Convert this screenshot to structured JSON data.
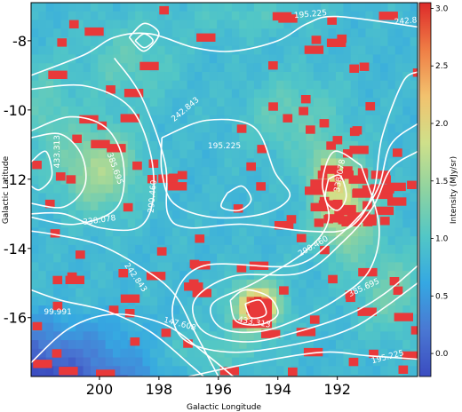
{
  "chart_data": {
    "type": "heatmap",
    "xlabel": "Galactic Longitude",
    "ylabel": "Galactic Latitude",
    "colorbar_label": "Intensity (MJy/sr)",
    "xlim": [
      202.3,
      189.3
    ],
    "ylim": [
      -17.7,
      -6.9
    ],
    "x_ticks": [
      200,
      198,
      196,
      194,
      192
    ],
    "y_ticks": [
      -8,
      -10,
      -12,
      -14,
      -16
    ],
    "colorbar_range": [
      -0.2,
      3.05
    ],
    "colorbar_ticks": [
      "0.0",
      "0.5",
      "1.0",
      "1.5",
      "2.0",
      "2.5",
      "3.0"
    ],
    "colormap": [
      "#3b4cc0",
      "#4a78d3",
      "#35a8e2",
      "#52c7c6",
      "#8fd3a0",
      "#cfe08a",
      "#f2c26e",
      "#ef7d45",
      "#dd2a2a"
    ],
    "masked_pixel_color": "#e8393a",
    "contours": {
      "color": "#ffffff",
      "levels": [
        99.991,
        147.608,
        195.225,
        242.843,
        290.46,
        338.078,
        385.695,
        433.313
      ],
      "labels": [
        {
          "text": "195.225",
          "x": 192.9,
          "y": -7.25,
          "angle": -5
        },
        {
          "text": "242.8",
          "x": 189.7,
          "y": -7.45,
          "angle": -5
        },
        {
          "text": "242.843",
          "x": 197.1,
          "y": -10.0,
          "angle": -40
        },
        {
          "text": "195.225",
          "x": 195.8,
          "y": -11.05,
          "angle": 0
        },
        {
          "text": "433.313",
          "x": 201.4,
          "y": -11.2,
          "angle": -90
        },
        {
          "text": "385.695",
          "x": 199.5,
          "y": -11.7,
          "angle": 70
        },
        {
          "text": "290.460",
          "x": 198.2,
          "y": -12.5,
          "angle": -85
        },
        {
          "text": "338.078",
          "x": 191.9,
          "y": -11.9,
          "angle": -80
        },
        {
          "text": "338.078",
          "x": 200.0,
          "y": -13.2,
          "angle": -8
        },
        {
          "text": "290.460",
          "x": 192.8,
          "y": -13.95,
          "angle": -30
        },
        {
          "text": "242.843",
          "x": 198.8,
          "y": -14.85,
          "angle": 55
        },
        {
          "text": "385.695",
          "x": 191.1,
          "y": -15.15,
          "angle": -25
        },
        {
          "text": "433.313",
          "x": 194.8,
          "y": -16.15,
          "angle": 10
        },
        {
          "text": "99.991",
          "x": 201.4,
          "y": -15.85,
          "angle": 0
        },
        {
          "text": "147.608",
          "x": 197.3,
          "y": -16.2,
          "angle": 15
        },
        {
          "text": "195.225",
          "x": 190.3,
          "y": -17.15,
          "angle": -15
        }
      ]
    }
  }
}
